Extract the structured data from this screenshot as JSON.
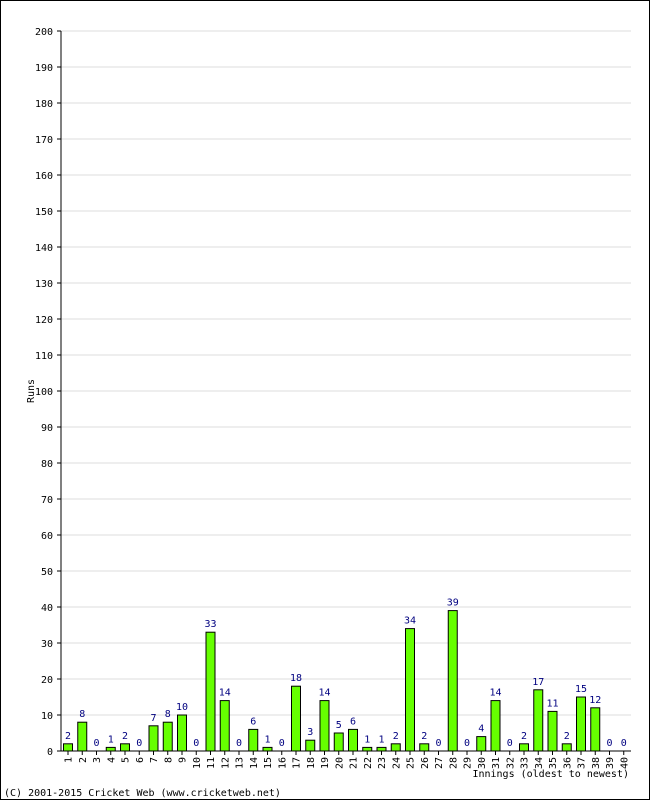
{
  "chart_data": {
    "type": "bar",
    "xlabel": "Innings (oldest to newest)",
    "ylabel": "Runs",
    "ylim": [
      0,
      200
    ],
    "yticks": [
      0,
      10,
      20,
      30,
      40,
      50,
      60,
      70,
      80,
      90,
      100,
      110,
      120,
      130,
      140,
      150,
      160,
      170,
      180,
      190,
      200
    ],
    "grid": true,
    "bar_color": "#66ff00",
    "bar_border_color": "#000000",
    "label_color": "#000080",
    "categories": [
      "1",
      "2",
      "3",
      "4",
      "5",
      "6",
      "7",
      "8",
      "9",
      "10",
      "11",
      "12",
      "13",
      "14",
      "15",
      "16",
      "17",
      "18",
      "19",
      "20",
      "21",
      "22",
      "23",
      "24",
      "25",
      "26",
      "27",
      "28",
      "29",
      "30",
      "31",
      "32",
      "33",
      "34",
      "35",
      "36",
      "37",
      "38",
      "39",
      "40"
    ],
    "values": [
      2,
      8,
      0,
      1,
      2,
      0,
      7,
      8,
      10,
      0,
      33,
      14,
      0,
      6,
      1,
      0,
      18,
      3,
      14,
      5,
      6,
      1,
      1,
      2,
      34,
      2,
      0,
      39,
      0,
      4,
      14,
      0,
      2,
      17,
      11,
      2,
      15,
      12,
      0,
      0
    ],
    "data_labels": [
      "2",
      "8",
      "0",
      "1",
      "2",
      "0",
      "7",
      "8",
      "10",
      "0",
      "33",
      "14",
      "0",
      "6",
      "1",
      "0",
      "18",
      "3",
      "14",
      "5",
      "6",
      "1",
      "1",
      "2",
      "34",
      "2",
      "0",
      "39",
      "0",
      "4",
      "14",
      "0",
      "2",
      "17",
      "11",
      "2",
      "15",
      "12",
      "0",
      "0"
    ]
  },
  "footer": {
    "copyright": "(C) 2001-2015 Cricket Web (www.cricketweb.net)"
  }
}
